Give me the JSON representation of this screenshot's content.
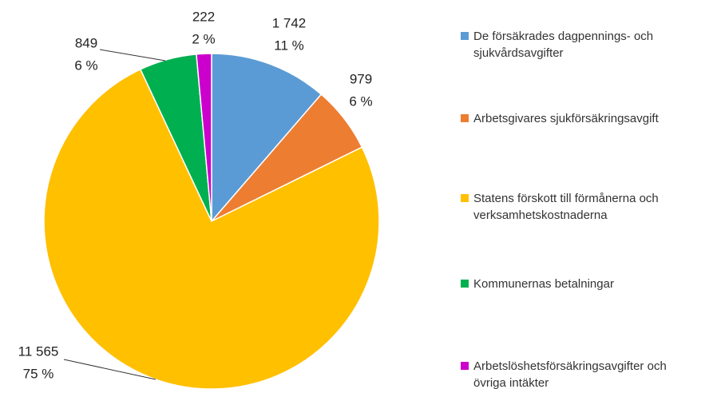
{
  "chart_data": {
    "type": "pie",
    "series": [
      {
        "name": "De försäkrades dagpennings- och sjukvårdsavgifter",
        "color": "#5b9bd5"
      },
      {
        "name": "Arbetsgivares sjukförsäkringsavgift",
        "color": "#ed7d31"
      },
      {
        "name": "Statens förskott till förmånerna och verksamhetskostnaderna",
        "color": "#ffc000"
      },
      {
        "name": "Kommunernas betalningar",
        "color": "#00b050"
      },
      {
        "name": "Arbetslöshetsförsäkringsavgifter och övriga intäkter",
        "color": "#cc00cc"
      }
    ],
    "values": [
      1742,
      979,
      11565,
      849,
      222
    ],
    "value_labels": [
      "1 742",
      "979",
      "11 565",
      "849",
      "222"
    ],
    "percent_labels": [
      "11 %",
      "6 %",
      "75 %",
      "6 %",
      "2 %"
    ],
    "legend": "right"
  }
}
